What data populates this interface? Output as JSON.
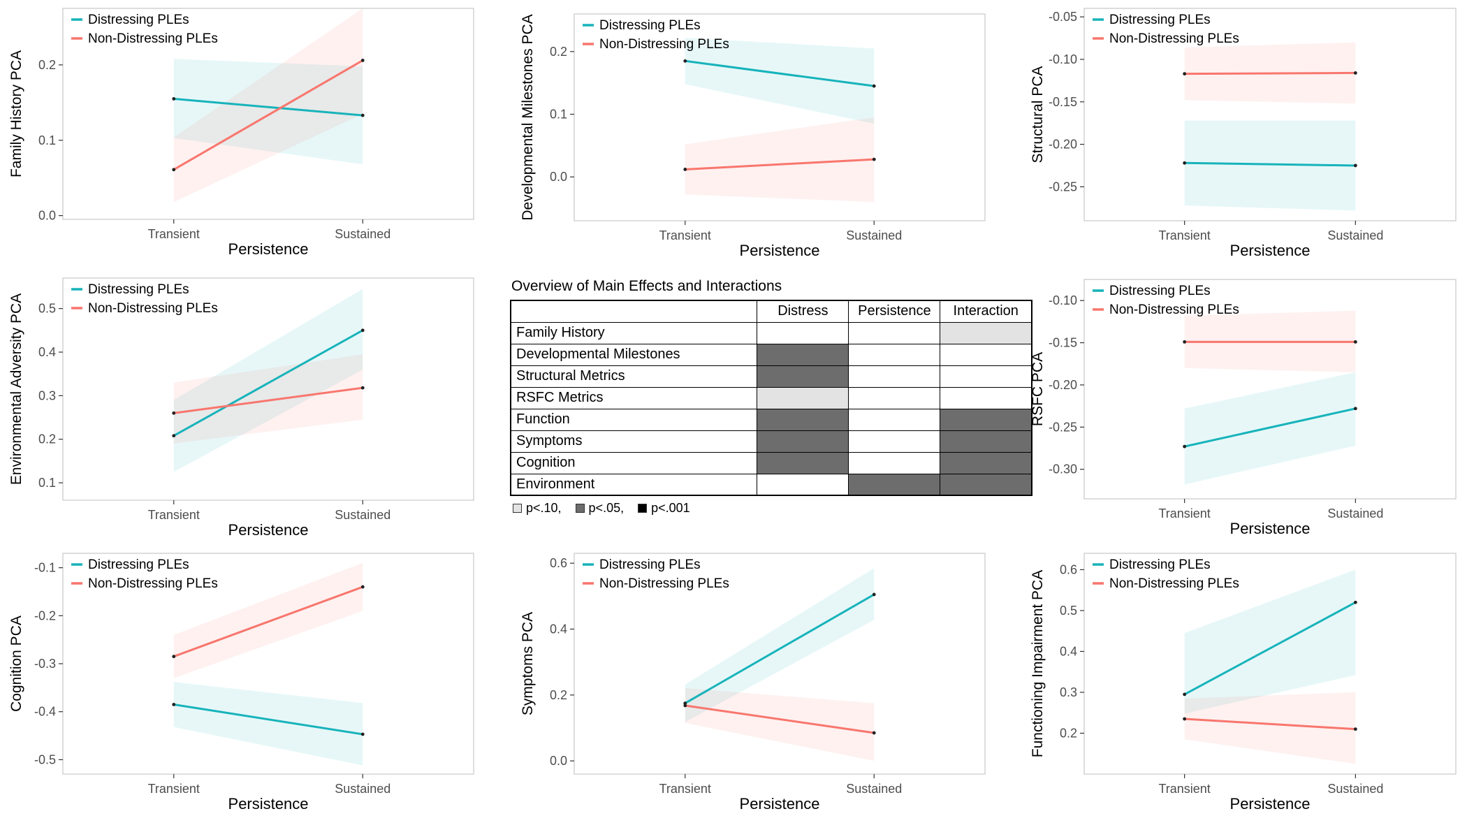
{
  "colors": {
    "distressing": "#17B3BA",
    "non_distressing": "#F8766D",
    "panel_border": "#CBCBCB",
    "axis_text": "#4D4D4D",
    "sig_p10": "#E3E3E3",
    "sig_p05": "#6D6D6D",
    "sig_p001": "#000000"
  },
  "legend_labels": [
    "Distressing PLEs",
    "Non-Distressing PLEs"
  ],
  "chart_data": [
    {
      "type": "line",
      "ylabel": "Family History PCA",
      "xlabel": "Persistence",
      "categories": [
        "Transient",
        "Sustained"
      ],
      "yticks": [
        0.0,
        0.1,
        0.2
      ],
      "ytick_labels": [
        "0.0",
        "0.1",
        "0.2"
      ],
      "ylim": [
        -0.005,
        0.275
      ],
      "legend_position": "top-left",
      "series": [
        {
          "name": "Distressing PLEs",
          "values": [
            0.155,
            0.133
          ],
          "ribbon_low": [
            0.103,
            0.068
          ],
          "ribbon_high": [
            0.208,
            0.198
          ]
        },
        {
          "name": "Non-Distressing PLEs",
          "values": [
            0.061,
            0.206
          ],
          "ribbon_low": [
            0.018,
            0.135
          ],
          "ribbon_high": [
            0.104,
            0.275
          ]
        }
      ]
    },
    {
      "type": "line",
      "ylabel": "Developmental Milestones PCA",
      "xlabel": "Persistence",
      "categories": [
        "Transient",
        "Sustained"
      ],
      "yticks": [
        0.0,
        0.1,
        0.2
      ],
      "ytick_labels": [
        "0.0",
        "0.1",
        "0.2"
      ],
      "ylim": [
        -0.07,
        0.26
      ],
      "legend_position": "top-left",
      "series": [
        {
          "name": "Distressing PLEs",
          "values": [
            0.185,
            0.145
          ],
          "ribbon_low": [
            0.148,
            0.085
          ],
          "ribbon_high": [
            0.222,
            0.205
          ]
        },
        {
          "name": "Non-Distressing PLEs",
          "values": [
            0.012,
            0.028
          ],
          "ribbon_low": [
            -0.028,
            -0.04
          ],
          "ribbon_high": [
            0.052,
            0.095
          ]
        }
      ]
    },
    {
      "type": "line",
      "ylabel": "Structural PCA",
      "xlabel": "Persistence",
      "categories": [
        "Transient",
        "Sustained"
      ],
      "yticks": [
        -0.05,
        -0.1,
        -0.15,
        -0.2,
        -0.25
      ],
      "ytick_labels": [
        "-0.05",
        "-0.10",
        "-0.15",
        "-0.20",
        "-0.25"
      ],
      "ylim": [
        -0.29,
        -0.04
      ],
      "legend_position": "top-left",
      "series": [
        {
          "name": "Distressing PLEs",
          "values": [
            -0.222,
            -0.225
          ],
          "ribbon_low": [
            -0.272,
            -0.278
          ],
          "ribbon_high": [
            -0.172,
            -0.172
          ]
        },
        {
          "name": "Non-Distressing PLEs",
          "values": [
            -0.117,
            -0.116
          ],
          "ribbon_low": [
            -0.148,
            -0.152
          ],
          "ribbon_high": [
            -0.086,
            -0.08
          ]
        }
      ]
    },
    {
      "type": "line",
      "ylabel": "Environmental Adversity PCA",
      "xlabel": "Persistence",
      "categories": [
        "Transient",
        "Sustained"
      ],
      "yticks": [
        0.1,
        0.2,
        0.3,
        0.4,
        0.5
      ],
      "ytick_labels": [
        "0.1",
        "0.2",
        "0.3",
        "0.4",
        "0.5"
      ],
      "ylim": [
        0.06,
        0.57
      ],
      "legend_position": "top-left",
      "series": [
        {
          "name": "Distressing PLEs",
          "values": [
            0.208,
            0.45
          ],
          "ribbon_low": [
            0.125,
            0.36
          ],
          "ribbon_high": [
            0.29,
            0.545
          ]
        },
        {
          "name": "Non-Distressing PLEs",
          "values": [
            0.26,
            0.318
          ],
          "ribbon_low": [
            0.19,
            0.245
          ],
          "ribbon_high": [
            0.33,
            0.395
          ]
        }
      ]
    },
    {
      "type": "table",
      "title": "Overview of Main Effects and Interactions",
      "columns": [
        "Distress",
        "Persistence",
        "Interaction"
      ],
      "rows": [
        {
          "label": "Family History",
          "cells": [
            "none",
            "none",
            "p10"
          ]
        },
        {
          "label": "Developmental Milestones",
          "cells": [
            "p05",
            "none",
            "none"
          ]
        },
        {
          "label": "Structural Metrics",
          "cells": [
            "p05",
            "none",
            "none"
          ]
        },
        {
          "label": "RSFC Metrics",
          "cells": [
            "p10",
            "none",
            "none"
          ]
        },
        {
          "label": "Function",
          "cells": [
            "p05",
            "none",
            "p05"
          ]
        },
        {
          "label": "Symptoms",
          "cells": [
            "p05",
            "none",
            "p05"
          ]
        },
        {
          "label": "Cognition",
          "cells": [
            "p05",
            "none",
            "p05"
          ]
        },
        {
          "label": "Environment",
          "cells": [
            "none",
            "p05",
            "p05"
          ]
        }
      ],
      "legend": [
        {
          "symbol": "p10",
          "label": "p<.10,"
        },
        {
          "symbol": "p05",
          "label": "p<.05,"
        },
        {
          "symbol": "p001",
          "label": "p<.001"
        }
      ]
    },
    {
      "type": "line",
      "ylabel": "RSFC PCA",
      "xlabel": "Persistence",
      "categories": [
        "Transient",
        "Sustained"
      ],
      "yticks": [
        -0.1,
        -0.15,
        -0.2,
        -0.25,
        -0.3
      ],
      "ytick_labels": [
        "-0.10",
        "-0.15",
        "-0.20",
        "-0.25",
        "-0.30"
      ],
      "ylim": [
        -0.335,
        -0.075
      ],
      "legend_position": "top-left",
      "series": [
        {
          "name": "Distressing PLEs",
          "values": [
            -0.273,
            -0.228
          ],
          "ribbon_low": [
            -0.318,
            -0.272
          ],
          "ribbon_high": [
            -0.228,
            -0.185
          ]
        },
        {
          "name": "Non-Distressing PLEs",
          "values": [
            -0.149,
            -0.149
          ],
          "ribbon_low": [
            -0.18,
            -0.185
          ],
          "ribbon_high": [
            -0.118,
            -0.112
          ]
        }
      ]
    },
    {
      "type": "line",
      "ylabel": "Cognition PCA",
      "xlabel": "Persistence",
      "categories": [
        "Transient",
        "Sustained"
      ],
      "yticks": [
        -0.1,
        -0.2,
        -0.3,
        -0.4,
        -0.5
      ],
      "ytick_labels": [
        "-0.1",
        "-0.2",
        "-0.3",
        "-0.4",
        "-0.5"
      ],
      "ylim": [
        -0.53,
        -0.07
      ],
      "legend_position": "top-left",
      "series": [
        {
          "name": "Distressing PLEs",
          "values": [
            -0.385,
            -0.447
          ],
          "ribbon_low": [
            -0.432,
            -0.512
          ],
          "ribbon_high": [
            -0.338,
            -0.382
          ]
        },
        {
          "name": "Non-Distressing PLEs",
          "values": [
            -0.285,
            -0.14
          ],
          "ribbon_low": [
            -0.33,
            -0.19
          ],
          "ribbon_high": [
            -0.24,
            -0.09
          ]
        }
      ]
    },
    {
      "type": "line",
      "ylabel": "Symptoms PCA",
      "xlabel": "Persistence",
      "categories": [
        "Transient",
        "Sustained"
      ],
      "yticks": [
        0.0,
        0.2,
        0.4,
        0.6
      ],
      "ytick_labels": [
        "0.0",
        "0.2",
        "0.4",
        "0.6"
      ],
      "ylim": [
        -0.04,
        0.63
      ],
      "legend_position": "none",
      "series": [
        {
          "name": "Distressing PLEs",
          "values": [
            0.175,
            0.505
          ],
          "ribbon_low": [
            0.118,
            0.428
          ],
          "ribbon_high": [
            0.232,
            0.585
          ]
        },
        {
          "name": "Non-Distressing PLEs",
          "values": [
            0.168,
            0.085
          ],
          "ribbon_low": [
            0.115,
            0.0
          ],
          "ribbon_high": [
            0.221,
            0.175
          ]
        }
      ]
    },
    {
      "type": "line",
      "ylabel": "Functioning Impairment PCA",
      "xlabel": "Persistence",
      "categories": [
        "Transient",
        "Sustained"
      ],
      "yticks": [
        0.2,
        0.3,
        0.4,
        0.5,
        0.6
      ],
      "ytick_labels": [
        "0.2",
        "0.3",
        "0.4",
        "0.5",
        "0.6"
      ],
      "ylim": [
        0.1,
        0.64
      ],
      "legend_position": "top-left",
      "series": [
        {
          "name": "Distressing PLEs",
          "values": [
            0.295,
            0.52
          ],
          "ribbon_low": [
            0.248,
            0.342
          ],
          "ribbon_high": [
            0.445,
            0.6
          ]
        },
        {
          "name": "Non-Distressing PLEs",
          "values": [
            0.235,
            0.21
          ],
          "ribbon_low": [
            0.185,
            0.125
          ],
          "ribbon_high": [
            0.285,
            0.3
          ]
        }
      ]
    }
  ]
}
